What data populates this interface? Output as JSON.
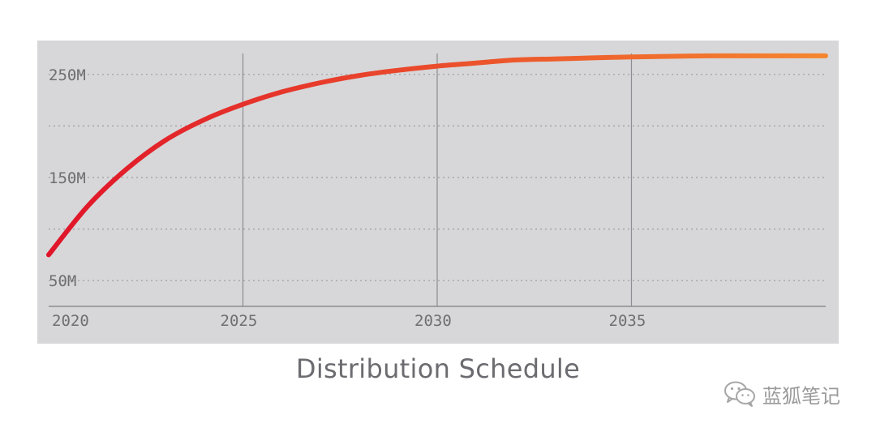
{
  "chart_data": {
    "type": "line",
    "title": "Distribution Schedule",
    "xlabel": "",
    "ylabel": "",
    "x_ticks": [
      "2020",
      "2025",
      "2030",
      "2035"
    ],
    "y_ticks": [
      "250M",
      "150M",
      "50M"
    ],
    "xlim": [
      2020,
      2040
    ],
    "ylim": [
      25,
      275
    ],
    "grid": {
      "horizontal": "dotted",
      "vertical": "solid at labeled years"
    },
    "series": [
      {
        "x": [
          2020,
          2021,
          2022,
          2023,
          2024,
          2025,
          2026,
          2027,
          2028,
          2029,
          2030,
          2031,
          2032,
          2033,
          2034,
          2035,
          2036,
          2037,
          2038,
          2039,
          2040
        ],
        "values": [
          75,
          122,
          158,
          186,
          206,
          221,
          233,
          242,
          249,
          254,
          258,
          261,
          264,
          265,
          266,
          267,
          267.5,
          268,
          268,
          268,
          268
        ],
        "color_start": "#e0142a",
        "color_end": "#f5862e"
      }
    ]
  },
  "caption": "Distribution Schedule",
  "watermark": {
    "text": "蓝狐笔记",
    "icon": "wechat-icon"
  }
}
